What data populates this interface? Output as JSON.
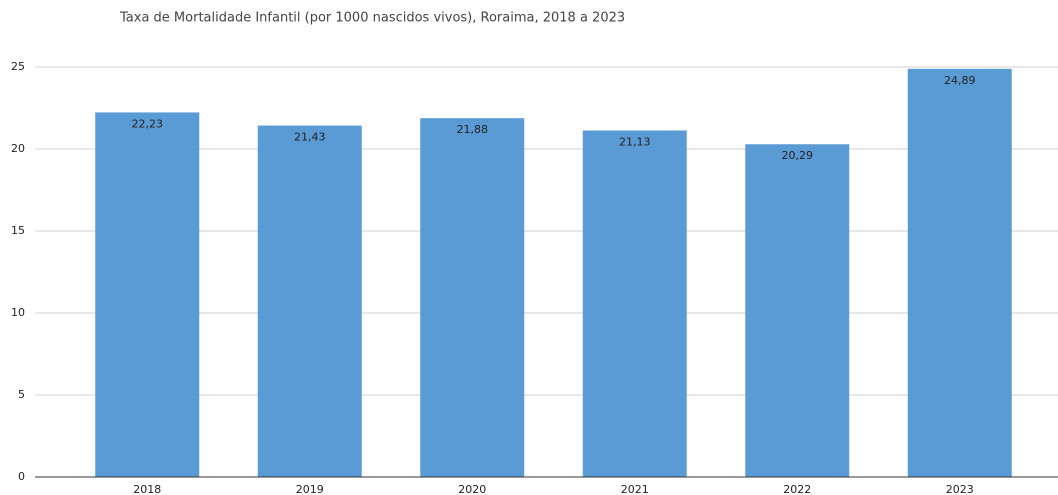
{
  "chart_data": {
    "type": "bar",
    "title": "Taxa de Mortalidade Infantil (por 1000 nascidos vivos), Roraima, 2018 a 2023",
    "categories": [
      "2018",
      "2019",
      "2020",
      "2021",
      "2022",
      "2023"
    ],
    "values": [
      22.23,
      21.43,
      21.88,
      21.13,
      20.29,
      24.89
    ],
    "value_labels": [
      "22,23",
      "21,43",
      "21,88",
      "21,13",
      "20,29",
      "24,89"
    ],
    "color": "#5b9bd5",
    "ylim": [
      0,
      25
    ],
    "yticks": [
      0,
      5,
      10,
      15,
      20,
      25
    ],
    "grid": true
  }
}
